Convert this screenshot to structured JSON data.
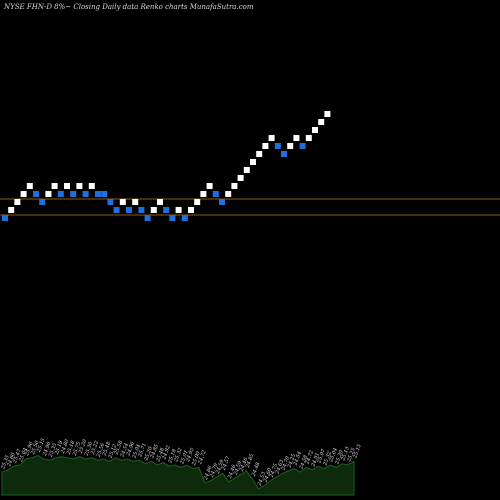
{
  "header": {
    "title": "NYSE FHN-D 8%~  Closing Daily data  Renko  charts MunafaSutra.com"
  },
  "colors": {
    "background": "#000000",
    "up_brick": "#ffffff",
    "down_brick": "#1e6fe0",
    "reference_line": "#8a5a1a",
    "volume_fill": "#0d2a0d",
    "volume_stroke": "#1f5f1f"
  },
  "chart_data": {
    "type": "renko",
    "title": "NYSE FHN-D 8%~  Closing Daily data  Renko  charts MunafaSutra.com",
    "reference_lines": [
      25.5,
      24.5
    ],
    "bricks": [
      {
        "i": 0,
        "level": 24.4,
        "dir": "down"
      },
      {
        "i": 1,
        "level": 24.8,
        "dir": "up"
      },
      {
        "i": 2,
        "level": 25.2,
        "dir": "up"
      },
      {
        "i": 3,
        "level": 25.6,
        "dir": "up"
      },
      {
        "i": 4,
        "level": 26.0,
        "dir": "up"
      },
      {
        "i": 5,
        "level": 25.6,
        "dir": "down"
      },
      {
        "i": 6,
        "level": 25.2,
        "dir": "down"
      },
      {
        "i": 7,
        "level": 25.6,
        "dir": "up"
      },
      {
        "i": 8,
        "level": 26.0,
        "dir": "up"
      },
      {
        "i": 9,
        "level": 25.6,
        "dir": "down"
      },
      {
        "i": 10,
        "level": 26.0,
        "dir": "up"
      },
      {
        "i": 11,
        "level": 25.6,
        "dir": "down"
      },
      {
        "i": 12,
        "level": 26.0,
        "dir": "up"
      },
      {
        "i": 13,
        "level": 25.6,
        "dir": "down"
      },
      {
        "i": 14,
        "level": 26.0,
        "dir": "up"
      },
      {
        "i": 15,
        "level": 25.6,
        "dir": "down"
      },
      {
        "i": 16,
        "level": 25.6,
        "dir": "down"
      },
      {
        "i": 17,
        "level": 25.2,
        "dir": "down"
      },
      {
        "i": 18,
        "level": 24.8,
        "dir": "down"
      },
      {
        "i": 19,
        "level": 25.2,
        "dir": "up"
      },
      {
        "i": 20,
        "level": 24.8,
        "dir": "down"
      },
      {
        "i": 21,
        "level": 25.2,
        "dir": "up"
      },
      {
        "i": 22,
        "level": 24.8,
        "dir": "down"
      },
      {
        "i": 23,
        "level": 24.4,
        "dir": "down"
      },
      {
        "i": 24,
        "level": 24.8,
        "dir": "up"
      },
      {
        "i": 25,
        "level": 25.2,
        "dir": "up"
      },
      {
        "i": 26,
        "level": 24.8,
        "dir": "down"
      },
      {
        "i": 27,
        "level": 24.4,
        "dir": "down"
      },
      {
        "i": 28,
        "level": 24.8,
        "dir": "up"
      },
      {
        "i": 29,
        "level": 24.4,
        "dir": "down"
      },
      {
        "i": 30,
        "level": 24.8,
        "dir": "up"
      },
      {
        "i": 31,
        "level": 25.2,
        "dir": "up"
      },
      {
        "i": 32,
        "level": 25.6,
        "dir": "up"
      },
      {
        "i": 33,
        "level": 26.0,
        "dir": "up"
      },
      {
        "i": 34,
        "level": 25.6,
        "dir": "down"
      },
      {
        "i": 35,
        "level": 25.2,
        "dir": "down"
      },
      {
        "i": 36,
        "level": 25.6,
        "dir": "up"
      },
      {
        "i": 37,
        "level": 26.0,
        "dir": "up"
      },
      {
        "i": 38,
        "level": 26.4,
        "dir": "up"
      },
      {
        "i": 39,
        "level": 26.8,
        "dir": "up"
      },
      {
        "i": 40,
        "level": 27.2,
        "dir": "up"
      },
      {
        "i": 41,
        "level": 27.6,
        "dir": "up"
      },
      {
        "i": 42,
        "level": 28.0,
        "dir": "up"
      },
      {
        "i": 43,
        "level": 28.4,
        "dir": "up"
      },
      {
        "i": 44,
        "level": 28.0,
        "dir": "down"
      },
      {
        "i": 45,
        "level": 27.6,
        "dir": "down"
      },
      {
        "i": 46,
        "level": 28.0,
        "dir": "up"
      },
      {
        "i": 47,
        "level": 28.4,
        "dir": "up"
      },
      {
        "i": 48,
        "level": 28.0,
        "dir": "down"
      },
      {
        "i": 49,
        "level": 28.4,
        "dir": "up"
      },
      {
        "i": 50,
        "level": 28.8,
        "dir": "up"
      },
      {
        "i": 51,
        "level": 29.2,
        "dir": "up"
      },
      {
        "i": 52,
        "level": 29.6,
        "dir": "up"
      }
    ],
    "volume_labels": [
      "25.35",
      "24.80",
      "25.47",
      "25.04",
      "25.96",
      "25.50",
      "25.15",
      "24.90",
      "25.35",
      "25.19",
      "24.80",
      "25.18",
      "25.75",
      "25.20",
      "25.30",
      "25.22",
      "25.56",
      "25.48",
      "25.12",
      "25.58",
      "24.54",
      "24.96",
      "25.04",
      "25.71",
      "25.20",
      "24.85",
      "25.48",
      "24.92",
      "25.18",
      "25.32",
      "25.01",
      "24.95",
      "25.00",
      "24.72",
      "24.86",
      "24.79",
      "24.59",
      "24.57",
      "24.46",
      "24.59",
      "24.46",
      "24.85",
      "24.48",
      "24.53",
      "24.60",
      "24.75",
      "24.63",
      "24.70",
      "24.25",
      "24.54",
      "24.58",
      "24.72",
      "24.91",
      "25.07",
      "25.32",
      "25.04",
      "25.20",
      "25.13",
      "25.25",
      "25.15"
    ],
    "volume_levels": [
      0.38,
      0.42,
      0.48,
      0.5,
      0.6,
      0.62,
      0.66,
      0.6,
      0.58,
      0.62,
      0.64,
      0.62,
      0.6,
      0.64,
      0.6,
      0.62,
      0.58,
      0.6,
      0.56,
      0.62,
      0.58,
      0.6,
      0.56,
      0.58,
      0.52,
      0.56,
      0.5,
      0.54,
      0.48,
      0.5,
      0.46,
      0.5,
      0.44,
      0.46,
      0.2,
      0.24,
      0.3,
      0.36,
      0.22,
      0.28,
      0.34,
      0.4,
      0.26,
      0.1,
      0.16,
      0.24,
      0.3,
      0.36,
      0.4,
      0.44,
      0.38,
      0.46,
      0.42,
      0.48,
      0.44,
      0.5,
      0.46,
      0.52,
      0.5,
      0.56
    ]
  }
}
